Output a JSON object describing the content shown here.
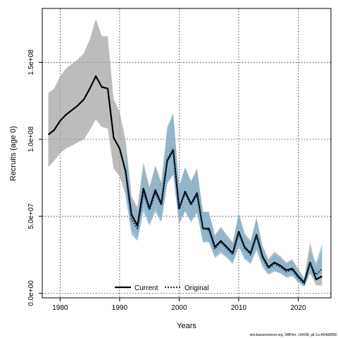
{
  "chart_data": {
    "type": "line",
    "xlabel": "Years",
    "ylabel": "Recruits (age 0)",
    "xlim": [
      1977,
      2025.5
    ],
    "ylim": [
      -3000000,
      185000000
    ],
    "xticks": [
      1980,
      1990,
      2000,
      2010,
      2020
    ],
    "xtick_labels": [
      "1980",
      "1990",
      "2000",
      "2010",
      "2020"
    ],
    "yticks": [
      0,
      50000000,
      100000000,
      150000000
    ],
    "ytick_labels": [
      "0.0e+00",
      "5.0e+07",
      "1.0e+08",
      "1.5e+08"
    ],
    "grid": true,
    "legend_position": "bottom-center",
    "series": [
      {
        "name": "Current",
        "style": "solid",
        "color": "#000000",
        "band_color": "#a6a6a6",
        "x": [
          1978,
          1979,
          1980,
          1981,
          1982,
          1983,
          1984,
          1985,
          1986,
          1987,
          1988,
          1989,
          1990,
          1991,
          1992,
          1993,
          1994,
          1995,
          1996,
          1997,
          1998,
          1999,
          2000,
          2001,
          2002,
          2003,
          2004,
          2005,
          2006,
          2007,
          2008,
          2009,
          2010,
          2011,
          2012,
          2013,
          2014,
          2015,
          2016,
          2017,
          2018,
          2019,
          2020,
          2021,
          2022,
          2023,
          2024
        ],
        "values": [
          103000000,
          106000000,
          112000000,
          116000000,
          119000000,
          122000000,
          126000000,
          133000000,
          141000000,
          134000000,
          133000000,
          101000000,
          94000000,
          79000000,
          51000000,
          44000000,
          68000000,
          55000000,
          67000000,
          58000000,
          86000000,
          93000000,
          55000000,
          66000000,
          58000000,
          65000000,
          42000000,
          42000000,
          30000000,
          34000000,
          30000000,
          26000000,
          40000000,
          30000000,
          26000000,
          38000000,
          24000000,
          17000000,
          20000000,
          18000000,
          15000000,
          16000000,
          11000000,
          7000000,
          20000000,
          9000000,
          11000000
        ],
        "lower": [
          82000000,
          86000000,
          91000000,
          94000000,
          96000000,
          98000000,
          100000000,
          106000000,
          113000000,
          108000000,
          107000000,
          81000000,
          76000000,
          64000000,
          41000000,
          36000000,
          56000000,
          45000000,
          55000000,
          47000000,
          71000000,
          77000000,
          45000000,
          54000000,
          47000000,
          53000000,
          34000000,
          34000000,
          24000000,
          27000000,
          24000000,
          20000000,
          31000000,
          23000000,
          20000000,
          29000000,
          18000000,
          13000000,
          15000000,
          13000000,
          11000000,
          12000000,
          8000000,
          5000000,
          13000000,
          5000000,
          5000000
        ],
        "upper": [
          130000000,
          133000000,
          141000000,
          146000000,
          149000000,
          152000000,
          156000000,
          165000000,
          178000000,
          167000000,
          167000000,
          126000000,
          118000000,
          99000000,
          63000000,
          56000000,
          85000000,
          69000000,
          83000000,
          72000000,
          106000000,
          116000000,
          69000000,
          82000000,
          73000000,
          81000000,
          53000000,
          53000000,
          38000000,
          43000000,
          38000000,
          33000000,
          52000000,
          39000000,
          34000000,
          49000000,
          31000000,
          22000000,
          27000000,
          24000000,
          20000000,
          22000000,
          16000000,
          10000000,
          33000000,
          17000000,
          28000000
        ]
      },
      {
        "name": "Original",
        "style": "dotted",
        "color": "#1a3a5a",
        "band_color": "#7fb2d0",
        "x": [
          1991,
          1992,
          1993,
          1994,
          1995,
          1996,
          1997,
          1998,
          1999,
          2000,
          2001,
          2002,
          2003,
          2004,
          2005,
          2006,
          2007,
          2008,
          2009,
          2010,
          2011,
          2012,
          2013,
          2014,
          2015,
          2016,
          2017,
          2018,
          2019,
          2020,
          2021,
          2022,
          2023,
          2024
        ],
        "values": [
          78000000,
          48000000,
          42000000,
          65000000,
          54000000,
          65000000,
          57000000,
          87000000,
          94000000,
          56000000,
          65000000,
          57000000,
          64000000,
          42000000,
          41000000,
          29000000,
          33000000,
          29000000,
          25000000,
          39000000,
          29000000,
          25000000,
          37000000,
          23000000,
          16000000,
          19000000,
          17000000,
          14000000,
          15000000,
          10000000,
          6000000,
          19000000,
          12000000,
          16000000
        ],
        "lower": [
          63000000,
          38000000,
          34000000,
          53000000,
          44000000,
          53000000,
          46000000,
          72000000,
          77000000,
          45000000,
          53000000,
          46000000,
          52000000,
          33000000,
          33000000,
          23000000,
          26000000,
          23000000,
          19000000,
          30000000,
          22000000,
          19000000,
          28000000,
          17000000,
          12000000,
          14000000,
          13000000,
          10000000,
          11000000,
          7000000,
          4000000,
          13000000,
          8000000,
          10000000
        ],
        "upper": [
          97000000,
          61000000,
          53000000,
          82000000,
          68000000,
          82000000,
          71000000,
          108000000,
          117000000,
          70000000,
          81000000,
          72000000,
          80000000,
          53000000,
          52000000,
          37000000,
          42000000,
          37000000,
          32000000,
          51000000,
          38000000,
          33000000,
          48000000,
          30000000,
          21000000,
          25000000,
          23000000,
          19000000,
          21000000,
          14000000,
          9000000,
          27000000,
          20000000,
          32000000
        ]
      }
    ]
  },
  "watermark": "stockassessment.org, WBHer, r19438, git:1cc464b8068"
}
